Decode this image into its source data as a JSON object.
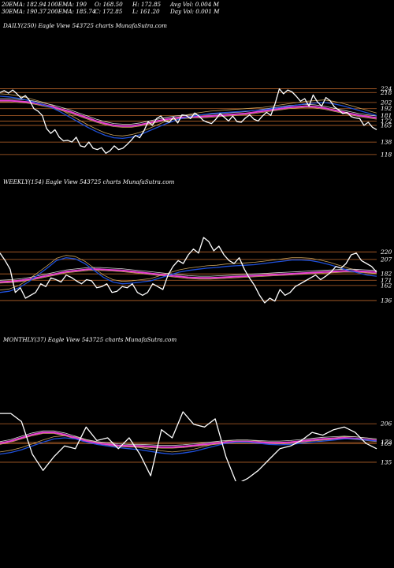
{
  "header": {
    "row1": [
      "20EMA: 182.94",
      "100EMA: 190",
      "O: 168.50",
      "H: 172.85",
      "Avg Vol: 0.004  M"
    ],
    "row2": [
      "30EMA: 190.37",
      "200EMA: 185.74",
      "C: 172.85",
      "L: 161.20",
      "Day Vol: 0.001 M"
    ]
  },
  "colors": {
    "background": "#000000",
    "price": "#ffffff",
    "ema_short": "#1e4fd8",
    "ema_long": "#e83fd6",
    "ema_gold": "#c8a15a",
    "ema_pale": "#d8d8d8",
    "level_line": "#b8642a"
  },
  "panels": [
    {
      "title": "DAILY(250) Eagle   View  543725 charts MunafaSutra.com",
      "levels": [
        "224",
        "218",
        "202",
        "192",
        "181",
        "172",
        "165",
        "138",
        "118"
      ]
    },
    {
      "title": "WEEKLY(154) Eagle   View  543725 charts MunafaSutra.com",
      "levels": [
        "220",
        "207",
        "182",
        "171",
        "162",
        "136"
      ]
    },
    {
      "title": "MONTHLY(37) Eagle   View  543725 charts MunafaSutra.com",
      "levels": [
        "206",
        "172",
        "169",
        "135"
      ]
    }
  ],
  "chart_data": [
    {
      "type": "line",
      "title": "DAILY(250) Eagle   View  543725 charts MunafaSutra.com",
      "ylim": [
        100,
        240
      ],
      "price_levels": [
        224,
        218,
        202,
        192,
        181,
        172,
        165,
        138,
        118
      ],
      "series": [
        {
          "values": [
            218,
            221,
            217,
            222,
            216,
            209,
            213,
            205,
            192,
            188,
            181,
            160,
            152,
            158,
            146,
            140,
            141,
            138,
            146,
            132,
            130,
            138,
            128,
            126,
            129,
            120,
            124,
            132,
            126,
            128,
            134,
            141,
            149,
            145,
            156,
            171,
            165,
            176,
            180,
            172,
            170,
            178,
            169,
            182,
            181,
            176,
            185,
            180,
            173,
            170,
            168,
            175,
            184,
            178,
            172,
            180,
            171,
            170,
            177,
            182,
            175,
            172,
            180,
            186,
            181,
            200,
            224,
            216,
            222,
            219,
            212,
            204,
            208,
            196,
            214,
            203,
            196,
            210,
            205,
            195,
            190,
            184,
            186,
            179,
            177,
            176,
            165,
            170,
            162,
            158
          ]
        },
        {
          "values": [
            212,
            211,
            209,
            206,
            202,
            198,
            193,
            186,
            178,
            170,
            162,
            155,
            149,
            145,
            144,
            146,
            150,
            156,
            162,
            168,
            173,
            177,
            180,
            182,
            184,
            185,
            186,
            187,
            188,
            189,
            190,
            192,
            194,
            196,
            198,
            200,
            201,
            202,
            200,
            197,
            193,
            189,
            185,
            181
          ]
        },
        {
          "values": [
            205,
            205,
            204,
            203,
            201,
            198,
            195,
            191,
            187,
            182,
            177,
            172,
            168,
            165,
            164,
            164,
            166,
            169,
            172,
            175,
            177,
            178,
            179,
            179,
            180,
            181,
            182,
            183,
            184,
            186,
            188,
            190,
            192,
            194,
            195,
            196,
            195,
            193,
            190,
            187,
            184,
            181,
            179,
            177
          ]
        }
      ]
    },
    {
      "type": "line",
      "title": "WEEKLY(154) Eagle   View  543725 charts MunafaSutra.com",
      "ylim": [
        110,
        260
      ],
      "price_levels": [
        220,
        207,
        182,
        171,
        162,
        136
      ],
      "series": [
        {
          "values": [
            218,
            205,
            190,
            150,
            158,
            140,
            145,
            150,
            165,
            160,
            175,
            172,
            168,
            180,
            176,
            170,
            165,
            172,
            170,
            158,
            160,
            165,
            150,
            152,
            160,
            158,
            165,
            150,
            145,
            150,
            165,
            160,
            155,
            180,
            195,
            205,
            200,
            215,
            225,
            218,
            245,
            238,
            222,
            230,
            215,
            205,
            200,
            210,
            190,
            175,
            162,
            145,
            132,
            140,
            135,
            155,
            145,
            150,
            160,
            165,
            170,
            175,
            180,
            172,
            178,
            185,
            195,
            192,
            200,
            215,
            218,
            205,
            200,
            195,
            185
          ]
        },
        {
          "values": [
            150,
            152,
            158,
            168,
            180,
            192,
            205,
            210,
            208,
            200,
            188,
            176,
            168,
            165,
            166,
            168,
            170,
            175,
            180,
            185,
            188,
            190,
            192,
            193,
            195,
            196,
            197,
            198,
            200,
            202,
            204,
            206,
            206,
            205,
            202,
            198,
            193,
            188,
            184,
            180,
            178
          ]
        },
        {
          "values": [
            168,
            169,
            171,
            174,
            178,
            182,
            186,
            188,
            190,
            190,
            189,
            188,
            186,
            184,
            182,
            180,
            178,
            176,
            175,
            175,
            176,
            177,
            178,
            179,
            180,
            181,
            182,
            183,
            184,
            185,
            186,
            187,
            187,
            186,
            185
          ]
        }
      ]
    },
    {
      "type": "line",
      "title": "MONTHLY(37) Eagle   View  543725 charts MunafaSutra.com",
      "ylim": [
        100,
        260
      ],
      "price_levels": [
        206,
        172,
        169,
        135
      ],
      "series": [
        {
          "values": [
            225,
            225,
            210,
            150,
            120,
            145,
            165,
            160,
            200,
            175,
            180,
            160,
            180,
            150,
            110,
            195,
            180,
            228,
            205,
            200,
            215,
            145,
            95,
            105,
            120,
            140,
            160,
            165,
            175,
            190,
            185,
            195,
            200,
            190,
            170,
            160
          ]
        },
        {
          "values": [
            150,
            153,
            158,
            165,
            172,
            178,
            180,
            178,
            172,
            168,
            165,
            162,
            160,
            158,
            155,
            152,
            150,
            152,
            155,
            160,
            165,
            170,
            172,
            172,
            170,
            168,
            167,
            168,
            170,
            172,
            174,
            176,
            178,
            178,
            176,
            174
          ]
        },
        {
          "values": [
            170,
            174,
            180,
            186,
            190,
            190,
            186,
            180,
            174,
            170,
            168,
            166,
            165,
            165,
            164,
            163,
            163,
            164,
            166,
            168,
            170,
            172,
            173,
            173,
            172,
            171,
            171,
            172,
            174,
            176,
            178,
            179,
            180,
            179,
            177,
            175
          ]
        }
      ]
    }
  ]
}
